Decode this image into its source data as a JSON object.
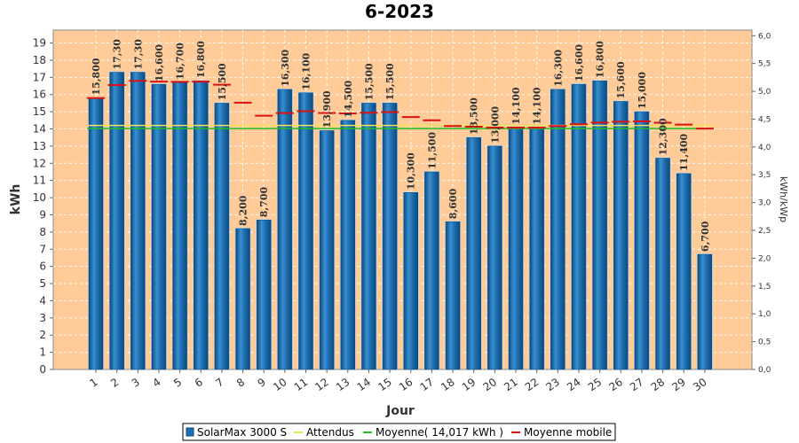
{
  "chart_data": {
    "type": "bar",
    "title": "6-2023",
    "xlabel": "Jour",
    "ylabel": "kWh",
    "ylabel_right": "kWh/kWp",
    "ylim": [
      0,
      19.75
    ],
    "ylim_right": [
      0,
      6.1
    ],
    "y_ticks": [
      0,
      1,
      2,
      3,
      4,
      5,
      6,
      7,
      8,
      9,
      10,
      11,
      12,
      13,
      14,
      15,
      16,
      17,
      18,
      19
    ],
    "y_right_ticks": [
      "0,0",
      "0,5",
      "1,0",
      "1,5",
      "2,0",
      "2,5",
      "3,0",
      "3,5",
      "4,0",
      "4,5",
      "5,0",
      "5,5",
      "6,0"
    ],
    "grid": true,
    "legend_position": "bottom",
    "categories": [
      "1",
      "2",
      "3",
      "4",
      "5",
      "6",
      "7",
      "8",
      "9",
      "10",
      "11",
      "12",
      "13",
      "14",
      "15",
      "16",
      "17",
      "18",
      "19",
      "20",
      "21",
      "22",
      "23",
      "24",
      "25",
      "26",
      "27",
      "28",
      "29",
      "30"
    ],
    "series": [
      {
        "name": "SolarMax 3000 S",
        "type": "bar",
        "values": [
          15.8,
          17.3,
          17.3,
          16.6,
          16.7,
          16.8,
          15.5,
          8.2,
          8.7,
          16.3,
          16.1,
          13.9,
          14.5,
          15.5,
          15.5,
          10.3,
          11.5,
          8.6,
          13.5,
          13.0,
          14.1,
          14.1,
          16.3,
          16.6,
          16.8,
          15.6,
          15.0,
          12.3,
          11.4,
          6.7
        ],
        "labels": [
          "15,800",
          "17,30",
          "17,30",
          "16,600",
          "16,700",
          "16,800",
          "15,500",
          "8,200",
          "8,700",
          "16,300",
          "16,100",
          "13,900",
          "14,500",
          "15,500",
          "15,500",
          "10,300",
          "11,500",
          "8,600",
          "13,500",
          "13,000",
          "14,100",
          "14,100",
          "16,300",
          "16,600",
          "16,800",
          "15,600",
          "15,000",
          "12,300",
          "11,400",
          "6,700"
        ],
        "color": "#1f6fb0"
      },
      {
        "name": "Attendus",
        "type": "line",
        "values": [
          14.2,
          14.2,
          14.2,
          14.2,
          14.2,
          14.2,
          14.2,
          14.2,
          14.2,
          14.2,
          14.2,
          14.2,
          14.2,
          14.2,
          14.2,
          14.2,
          14.2,
          14.2,
          14.2,
          14.2,
          14.2,
          14.2,
          14.2,
          14.2,
          14.2,
          14.2,
          14.2,
          14.2,
          14.2,
          14.2
        ],
        "color": "#f2e25a"
      },
      {
        "name": "Moyenne( 14,017 kWh )",
        "type": "line",
        "value": 14.017,
        "color": "#22bb22"
      },
      {
        "name": "Moyenne mobile",
        "type": "step",
        "values": [
          15.8,
          16.55,
          16.8,
          16.75,
          16.74,
          16.75,
          16.57,
          15.53,
          14.77,
          14.92,
          15.03,
          14.93,
          14.9,
          14.94,
          14.98,
          14.69,
          14.5,
          14.17,
          14.13,
          14.08,
          14.08,
          14.08,
          14.17,
          14.27,
          14.37,
          14.42,
          14.44,
          14.36,
          14.25,
          14.02
        ],
        "color": "#dd1111"
      }
    ]
  },
  "legend": {
    "items": [
      {
        "label": "SolarMax 3000 S",
        "color": "#1f6fb0",
        "shape": "box"
      },
      {
        "label": "Attendus",
        "color": "#f2e25a",
        "shape": "line"
      },
      {
        "label": "Moyenne( 14,017 kWh )",
        "color": "#22bb22",
        "shape": "line"
      },
      {
        "label": "Moyenne mobile",
        "color": "#dd1111",
        "shape": "line"
      }
    ]
  }
}
